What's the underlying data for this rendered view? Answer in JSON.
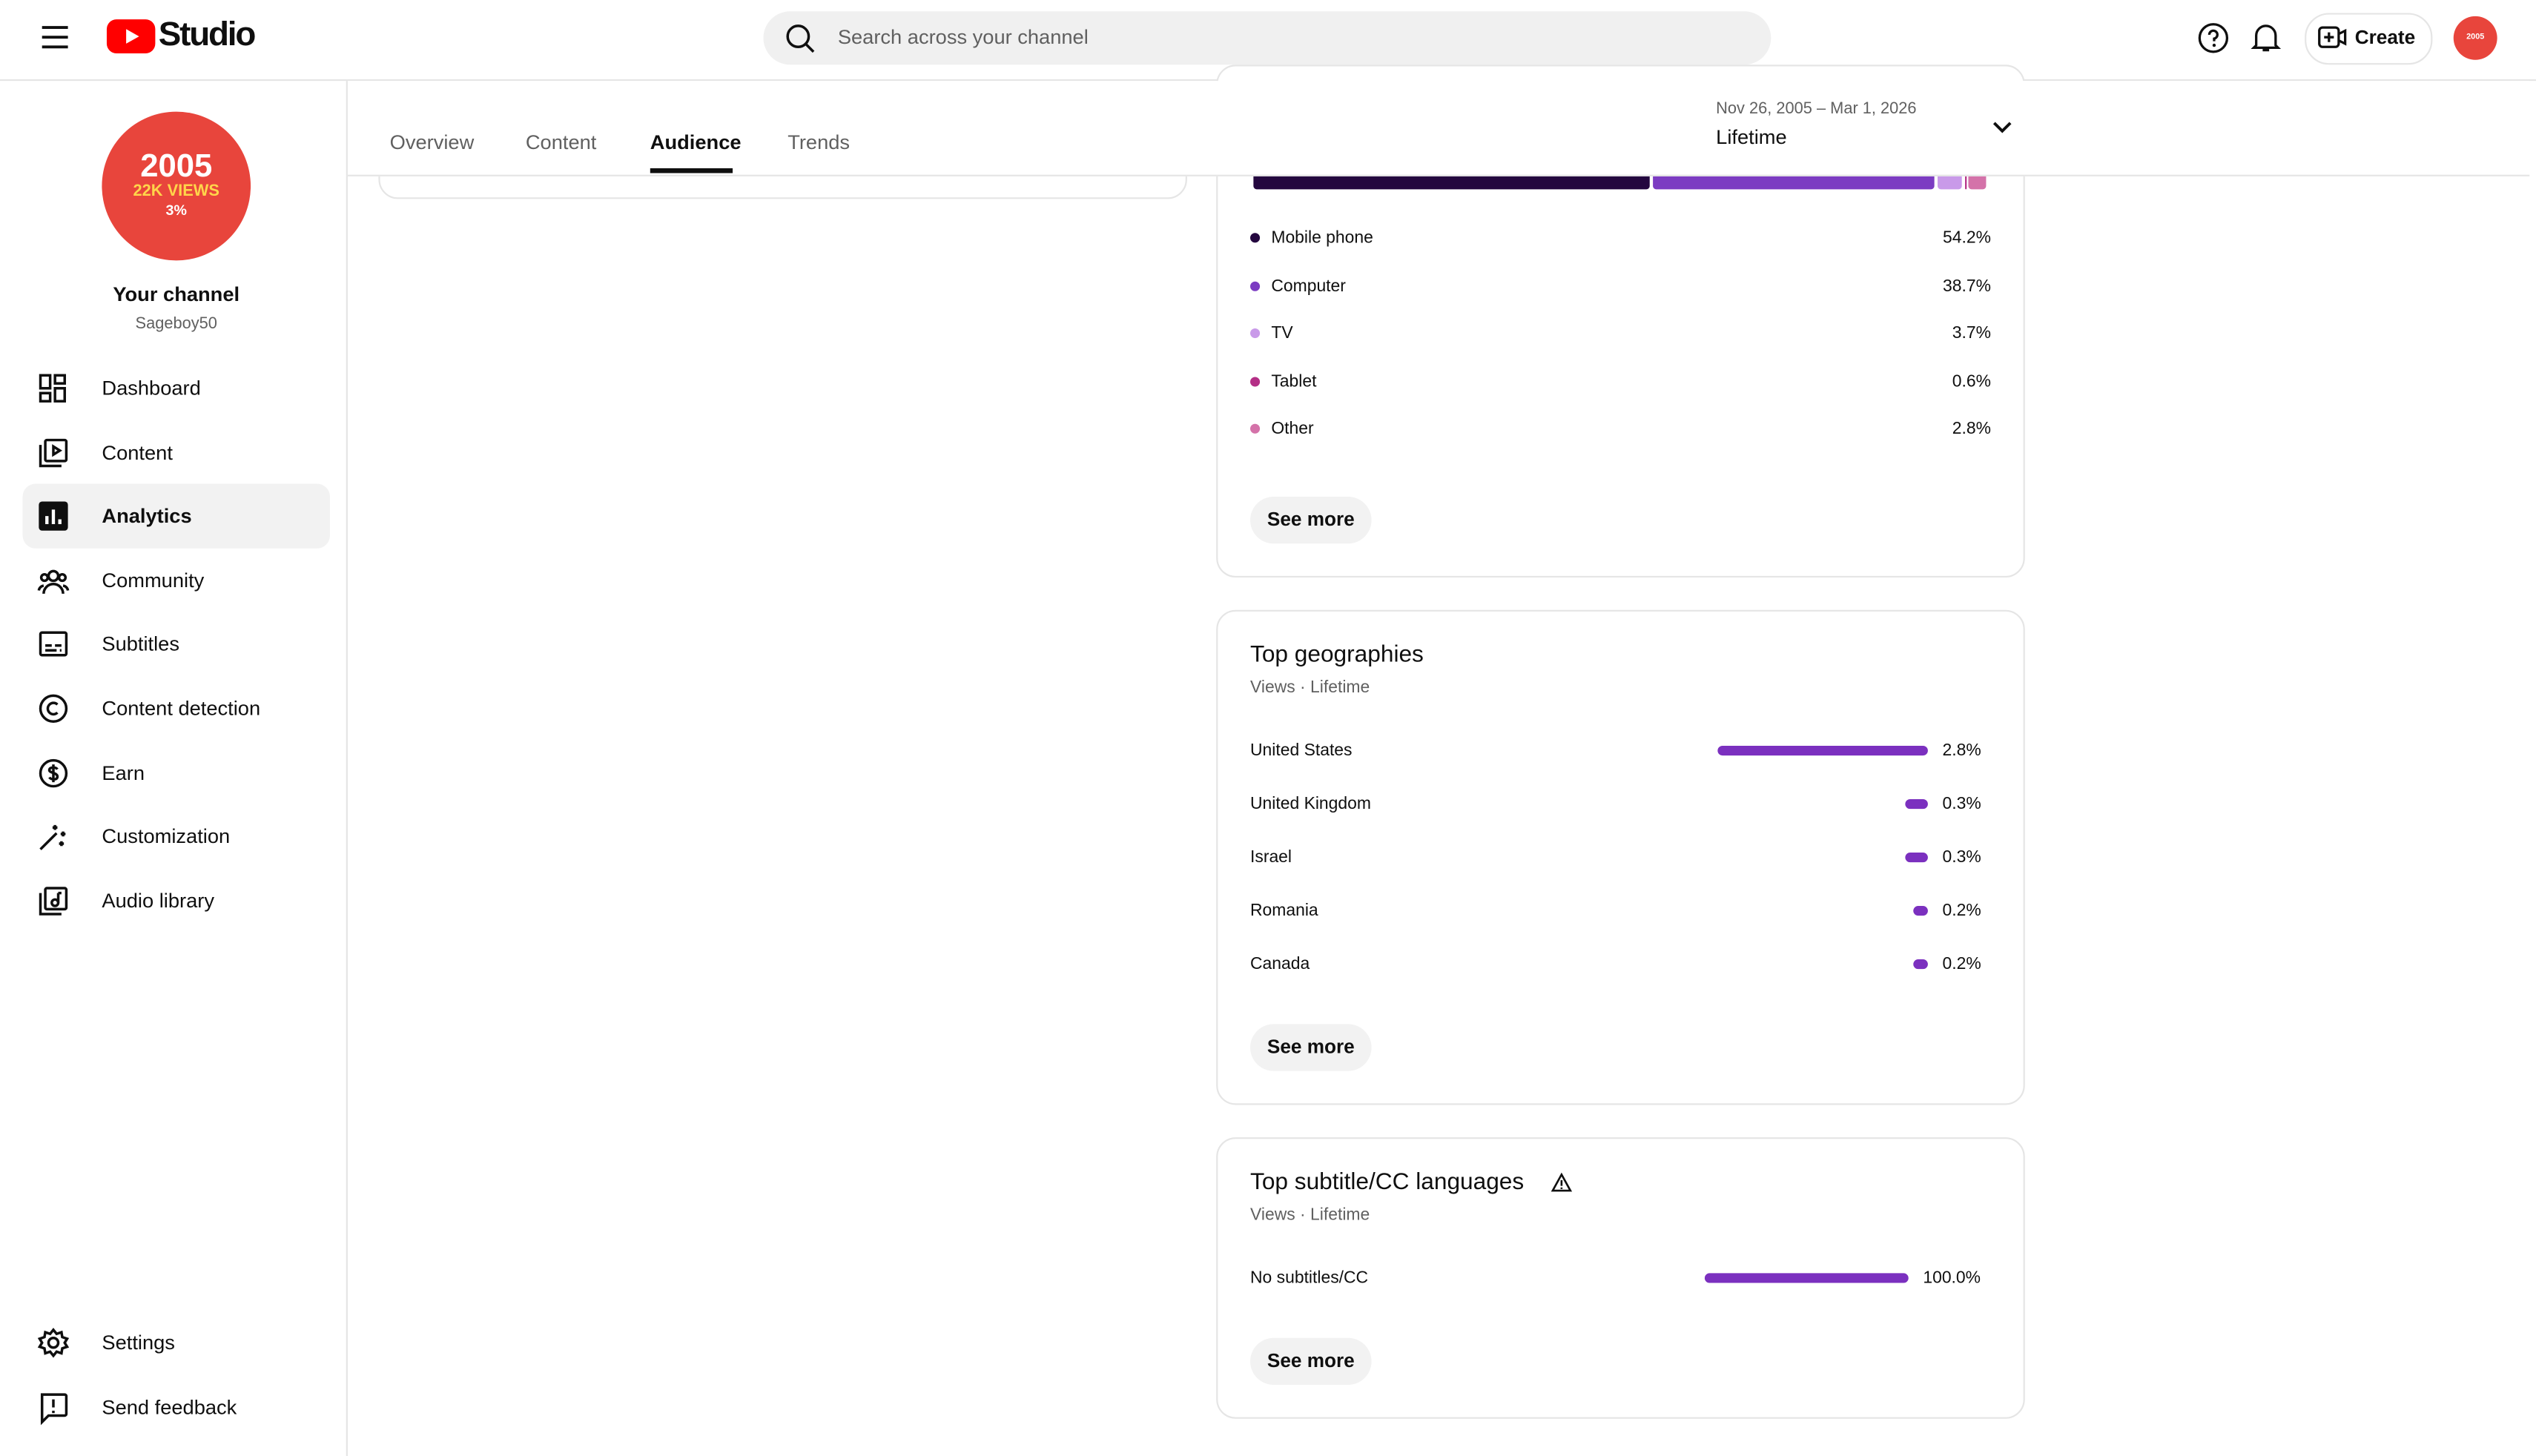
{
  "header": {
    "logo": "Studio",
    "search_placeholder": "Search across your channel",
    "create": "Create"
  },
  "avatar": {
    "line1": "2005",
    "line2": "22K VIEWS",
    "line3": "3%"
  },
  "sidebar": {
    "channel_title": "Your channel",
    "channel_name": "Sageboy50",
    "nav": [
      "Dashboard",
      "Content",
      "Analytics",
      "Community",
      "Subtitles",
      "Content detection",
      "Earn",
      "Customization",
      "Audio library"
    ],
    "footer": [
      "Settings",
      "Send feedback"
    ]
  },
  "tabs": [
    "Overview",
    "Content",
    "Audience",
    "Trends"
  ],
  "date_range": {
    "range": "Nov 26, 2005 – Mar 1, 2026",
    "period": "Lifetime"
  },
  "devices": {
    "rows": [
      {
        "label": "Mobile phone",
        "value": "54.2%",
        "color": "#24073f"
      },
      {
        "label": "Computer",
        "value": "38.7%",
        "color": "#7c3cc2"
      },
      {
        "label": "TV",
        "value": "3.7%",
        "color": "#c99ae9"
      },
      {
        "label": "Tablet",
        "value": "0.6%",
        "color": "#b42f86"
      },
      {
        "label": "Other",
        "value": "2.8%",
        "color": "#d472a9"
      }
    ],
    "see_more": "See more"
  },
  "geographies": {
    "title": "Top geographies",
    "subtitle": "Views · Lifetime",
    "rows": [
      {
        "label": "United States",
        "value": "2.8%"
      },
      {
        "label": "United Kingdom",
        "value": "0.3%"
      },
      {
        "label": "Israel",
        "value": "0.3%"
      },
      {
        "label": "Romania",
        "value": "0.2%"
      },
      {
        "label": "Canada",
        "value": "0.2%"
      }
    ],
    "see_more": "See more"
  },
  "subtitles": {
    "title": "Top subtitle/CC languages",
    "subtitle": "Views · Lifetime",
    "rows": [
      {
        "label": "No subtitles/CC",
        "value": "100.0%"
      }
    ],
    "see_more": "See more"
  }
}
